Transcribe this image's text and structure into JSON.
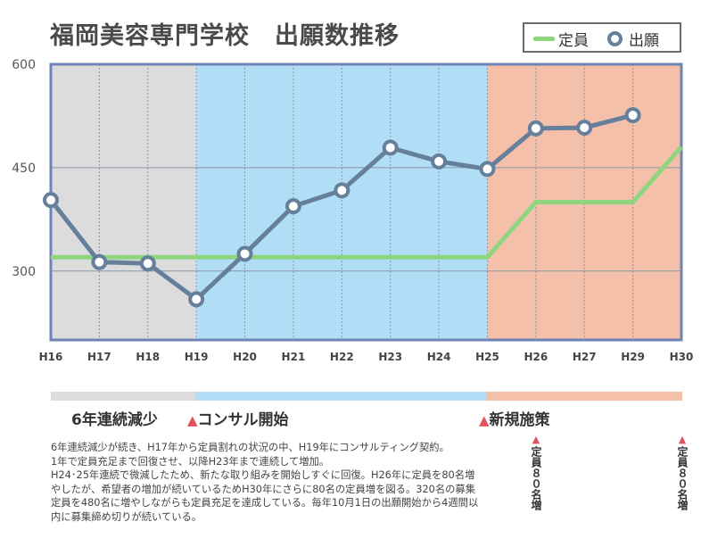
{
  "title": "福岡美容専門学校　出願数推移",
  "legend": {
    "capacity_label": "定員",
    "applications_label": "出願"
  },
  "phases": [
    {
      "label": "6年連続減少",
      "marker": "",
      "color": "#dcdcdc"
    },
    {
      "label": "コンサル開始",
      "marker": "▲",
      "color": "#b1def6"
    },
    {
      "label": "新規施策",
      "marker": "▲",
      "color": "#f5c0aa"
    }
  ],
  "notes": [
    "6年連続減少が続き、H17年から定員割れの状況の中、H19年にコンサルティング契約。",
    "1年で定員充足まで回復させ、以降H23年まで連続して増加。",
    "H24･25年連続で微減したため、新たな取り組みを開始しすぐに回復。H26年に定員を80名増やしたが、希望者の増加が続いているためH30年にさらに80名の定員増を図る。320名の募集定員を480名に増やしながらも定員充足を達成している。毎年10月1日の出願開始から4週間以内に募集締め切りが続いている。"
  ],
  "vertical_notes": [
    {
      "marker": "▲",
      "text": "定員８０名増"
    },
    {
      "marker": "▲",
      "text": "定員８０名増"
    }
  ],
  "chart_data": {
    "type": "line",
    "categories": [
      "H16",
      "H17",
      "H18",
      "H19",
      "H20",
      "H21",
      "H22",
      "H23",
      "H24",
      "H25",
      "H26",
      "H27",
      "H29",
      "H30"
    ],
    "series": [
      {
        "name": "定員",
        "values": [
          320,
          320,
          320,
          320,
          320,
          320,
          320,
          320,
          320,
          320,
          400,
          400,
          400,
          480
        ],
        "color": "#8fd57e"
      },
      {
        "name": "出願",
        "values": [
          403,
          313,
          311,
          259,
          325,
          394,
          417,
          479,
          459,
          448,
          507,
          508,
          526,
          null
        ],
        "color": "#667f9b"
      }
    ],
    "yticks": [
      300,
      450,
      600
    ],
    "ylim": [
      200,
      600
    ],
    "background_bands": [
      {
        "from": "H16",
        "to": "H19",
        "color": "#dcdcdc"
      },
      {
        "from": "H19",
        "to": "H25",
        "color": "#b1def6"
      },
      {
        "from": "H25",
        "to": "H30",
        "color": "#f5c0aa"
      }
    ],
    "grid": true,
    "legend_position": "top-right"
  }
}
